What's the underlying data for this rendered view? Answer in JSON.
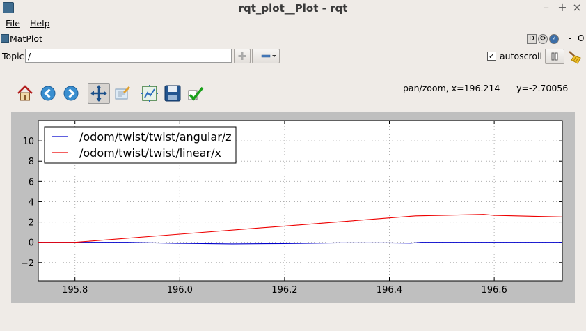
{
  "window": {
    "title": "rqt_plot__Plot - rqt",
    "controls": {
      "minimize": "–",
      "maximize": "+",
      "close": "×"
    }
  },
  "menu": {
    "file": "File",
    "help": "Help"
  },
  "plugin": {
    "name": "MatPlot",
    "d_button": "D",
    "help_button": "?",
    "dash": "-",
    "o_label": "O"
  },
  "topic": {
    "label": "Topic",
    "value": "/"
  },
  "autoscroll": {
    "label": "autoscroll",
    "checked": true
  },
  "toolbar": {
    "tools": [
      "home-icon",
      "back-icon",
      "forward-icon",
      "pan-icon",
      "zoom-icon",
      "subplots-icon",
      "save-icon",
      "edit-icon"
    ]
  },
  "status": {
    "text": "pan/zoom, x=196.214      y=-2.70056"
  },
  "chart_data": {
    "type": "line",
    "xlim": [
      195.73,
      196.73
    ],
    "ylim": [
      -3.8,
      12
    ],
    "x_ticks": [
      195.8,
      196.0,
      196.2,
      196.4,
      196.6
    ],
    "x_tick_labels": [
      "195.8",
      "196.0",
      "196.2",
      "196.4",
      "196.6"
    ],
    "y_ticks": [
      -2,
      0,
      2,
      4,
      6,
      8,
      10
    ],
    "y_tick_labels": [
      "−2",
      "0",
      "2",
      "4",
      "6",
      "8",
      "10"
    ],
    "grid": true,
    "legend": "top-left",
    "series": [
      {
        "name": "/odom/twist/twist/angular/z",
        "color": "#0000cc",
        "x": [
          195.73,
          195.8,
          195.9,
          196.0,
          196.1,
          196.2,
          196.3,
          196.4,
          196.44,
          196.46,
          196.5,
          196.6,
          196.73
        ],
        "y": [
          0.0,
          0.0,
          0.0,
          -0.1,
          -0.15,
          -0.12,
          -0.05,
          -0.05,
          -0.08,
          0.0,
          0.0,
          0.0,
          0.0
        ]
      },
      {
        "name": "/odom/twist/twist/linear/x",
        "color": "#ee0000",
        "x": [
          195.73,
          195.8,
          196.0,
          196.2,
          196.3,
          196.4,
          196.45,
          196.5,
          196.58,
          196.6,
          196.73
        ],
        "y": [
          0.0,
          0.0,
          0.8,
          1.6,
          2.0,
          2.4,
          2.6,
          2.65,
          2.75,
          2.65,
          2.5
        ]
      }
    ]
  }
}
